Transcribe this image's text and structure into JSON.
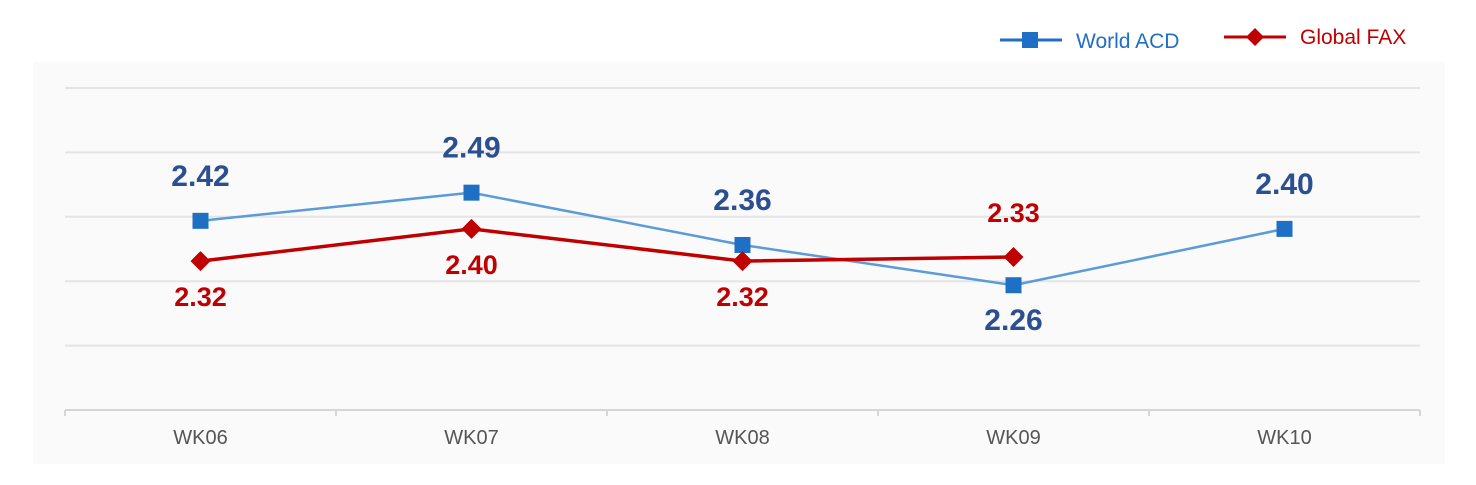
{
  "chart_data": {
    "type": "line",
    "categories": [
      "WK06",
      "WK07",
      "WK08",
      "WK09",
      "WK10"
    ],
    "series": [
      {
        "name": "World ACD",
        "values": [
          2.42,
          2.49,
          2.36,
          2.26,
          2.4
        ],
        "color": "#1f6fc4",
        "line_color": "#5b9bd8",
        "label_color": "#2b4f8f",
        "marker": "square"
      },
      {
        "name": "Global FAX",
        "values": [
          2.32,
          2.4,
          2.32,
          2.33,
          null
        ],
        "color": "#c00000",
        "line_color": "#c00000",
        "label_color": "#c00000",
        "marker": "diamond"
      }
    ],
    "labels": {
      "series_0": [
        "2.42",
        "2.49",
        "2.36",
        "2.26",
        "2.40"
      ],
      "series_1": [
        "2.32",
        "2.40",
        "2.32",
        "2.33",
        ""
      ]
    },
    "label_positions": {
      "series_0": [
        "above",
        "above",
        "above",
        "below",
        "above"
      ],
      "series_1": [
        "below",
        "below",
        "below",
        "above",
        "none"
      ]
    },
    "ylim": [
      1.95,
      2.75
    ],
    "grid": true,
    "legend_position": "top-right",
    "background": "#fafafa",
    "grid_color": "#e4e4e4"
  }
}
